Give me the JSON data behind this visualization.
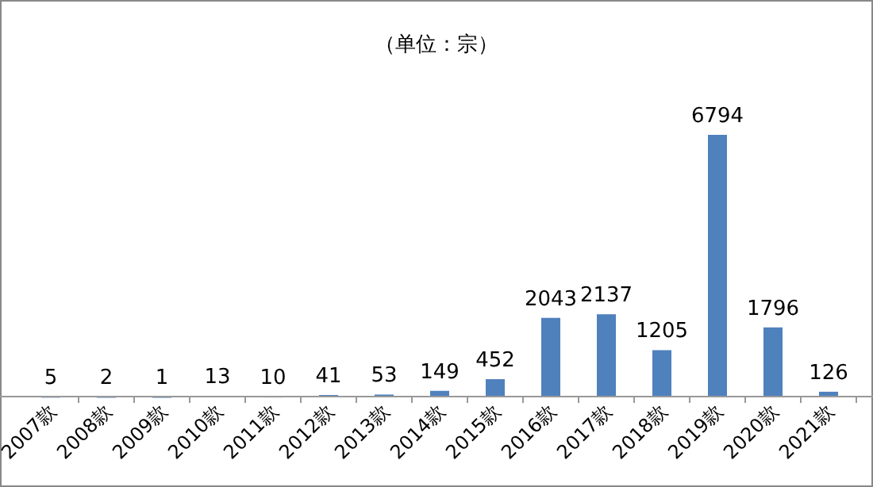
{
  "chart_data": {
    "type": "bar",
    "subtitle": "（单位：宗）",
    "categories": [
      "2007款",
      "2008款",
      "2009款",
      "2010款",
      "2011款",
      "2012款",
      "2013款",
      "2014款",
      "2015款",
      "2016款",
      "2017款",
      "2018款",
      "2019款",
      "2020款",
      "2021款"
    ],
    "values": [
      5,
      2,
      1,
      13,
      10,
      41,
      53,
      149,
      452,
      2043,
      2137,
      1205,
      6794,
      1796,
      126
    ],
    "color": "#4f81bd",
    "data_labels": true,
    "relative": false
  }
}
